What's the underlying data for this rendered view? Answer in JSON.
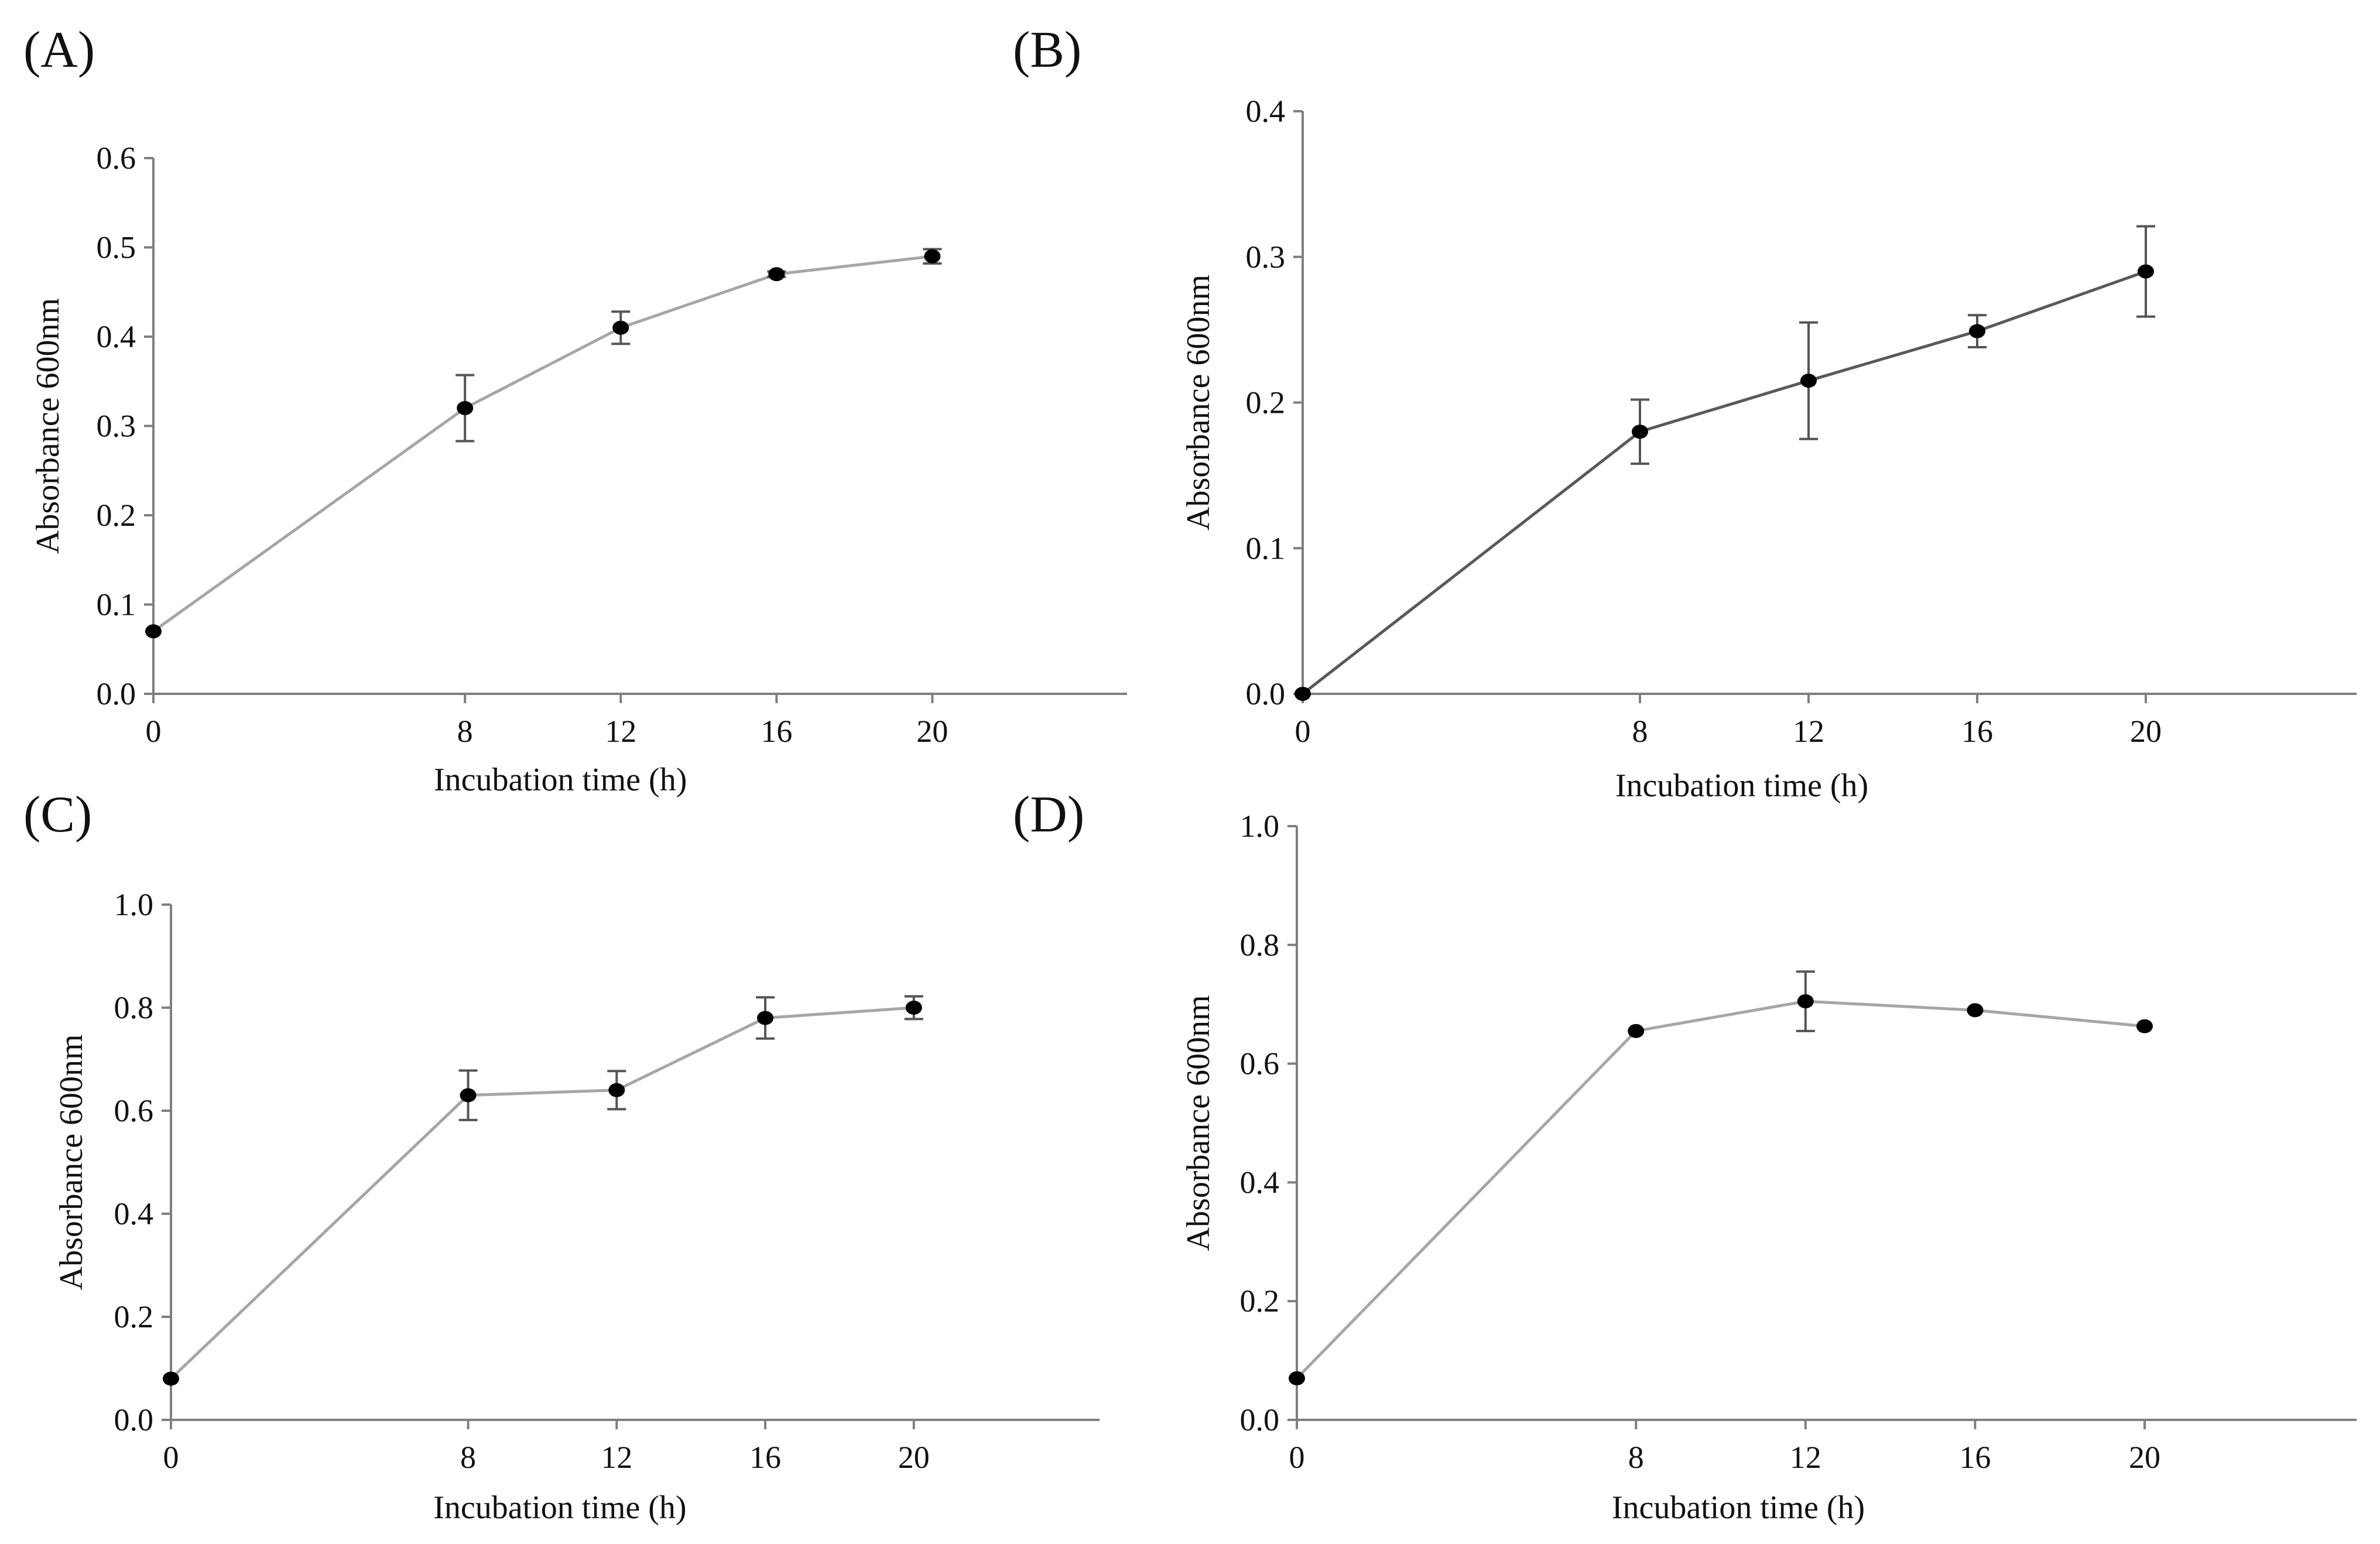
{
  "chart_data": [
    {
      "panel_label": "(A)",
      "type": "line",
      "title": "",
      "xlabel": "Incubation time (h)",
      "ylabel": "Absorbance 600nm",
      "x": [
        0,
        8,
        12,
        16,
        20
      ],
      "x_ticks": [
        "0",
        "8",
        "12",
        "16",
        "20"
      ],
      "y": [
        0.07,
        0.32,
        0.41,
        0.47,
        0.49
      ],
      "y_err": [
        0.0,
        0.037,
        0.018,
        0.003,
        0.008
      ],
      "ylim": [
        0,
        0.6
      ],
      "y_ticks": [
        "0.0",
        "0.1",
        "0.2",
        "0.3",
        "0.4",
        "0.5",
        "0.6"
      ],
      "line_color": "#a6a6a6",
      "marker_color": "#000000",
      "grid": false
    },
    {
      "panel_label": "(B)",
      "type": "line",
      "title": "",
      "xlabel": "Incubation time (h)",
      "ylabel": "Absorbance 600nm",
      "x": [
        0,
        8,
        12,
        16,
        20
      ],
      "x_ticks": [
        "0",
        "8",
        "12",
        "16",
        "20"
      ],
      "y": [
        0.0,
        0.18,
        0.215,
        0.249,
        0.29
      ],
      "y_err": [
        0.0,
        0.022,
        0.04,
        0.011,
        0.031
      ],
      "ylim": [
        0,
        0.4
      ],
      "y_ticks": [
        "0.0",
        "0.1",
        "0.2",
        "0.3",
        "0.4"
      ],
      "line_color": "#595959",
      "marker_color": "#000000",
      "grid": false
    },
    {
      "panel_label": "(C)",
      "type": "line",
      "title": "",
      "xlabel": "Incubation time (h)",
      "ylabel": "Absorbance 600nm",
      "x": [
        0,
        8,
        12,
        16,
        20
      ],
      "x_ticks": [
        "0",
        "8",
        "12",
        "16",
        "20"
      ],
      "y": [
        0.08,
        0.63,
        0.64,
        0.78,
        0.8
      ],
      "y_err": [
        0.0,
        0.048,
        0.037,
        0.04,
        0.022
      ],
      "ylim": [
        0,
        1.0
      ],
      "y_ticks": [
        "0.0",
        "0.2",
        "0.4",
        "0.6",
        "0.8",
        "1.0"
      ],
      "line_color": "#a6a6a6",
      "marker_color": "#000000",
      "grid": false
    },
    {
      "panel_label": "(D)",
      "type": "line",
      "title": "",
      "xlabel": "Incubation time (h)",
      "ylabel": "Absorbance 600nm",
      "x": [
        0,
        8,
        12,
        16,
        20
      ],
      "x_ticks": [
        "0",
        "8",
        "12",
        "16",
        "20"
      ],
      "y": [
        0.07,
        0.655,
        0.705,
        0.69,
        0.663
      ],
      "y_err": [
        0.0,
        0.0,
        0.05,
        0.0,
        0.0
      ],
      "ylim": [
        0,
        1.0
      ],
      "y_ticks": [
        "0.0",
        "0.2",
        "0.4",
        "0.6",
        "0.8",
        "1.0"
      ],
      "line_color": "#a6a6a6",
      "marker_color": "#000000",
      "grid": false
    }
  ]
}
